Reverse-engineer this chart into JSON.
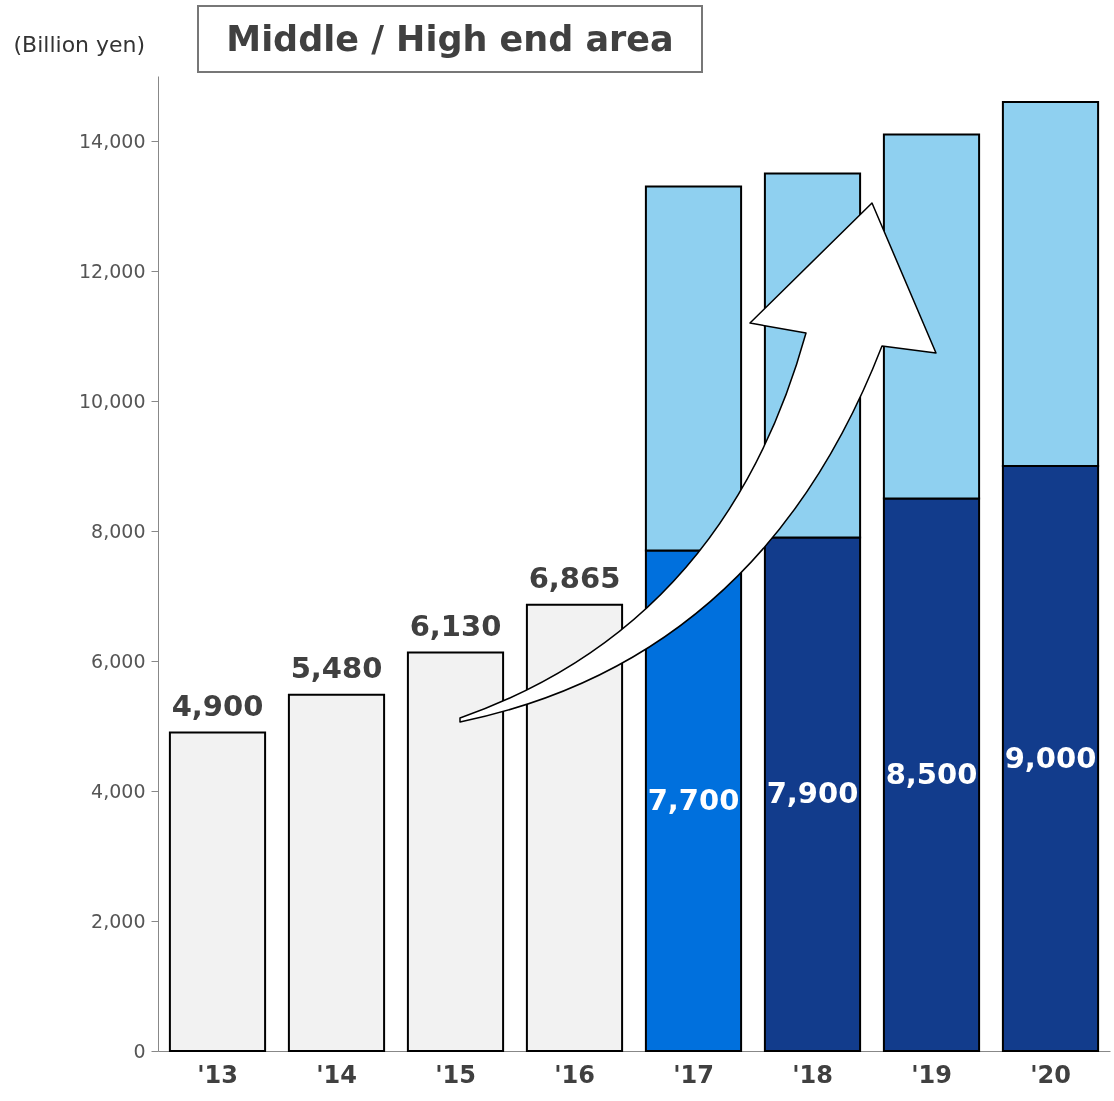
{
  "chart_data": {
    "type": "bar",
    "title": "Middle / High end area",
    "ylabel": "(Billion yen)",
    "categories": [
      "'13",
      "'14",
      "'15",
      "'16",
      "'17",
      "'18",
      "'19",
      "'20"
    ],
    "stacked": true,
    "series": [
      {
        "colors": [
          "#f2f2f2",
          "#f2f2f2",
          "#f2f2f2",
          "#f2f2f2",
          "#0070dd",
          "#123c8c",
          "#123c8c",
          "#123c8c"
        ],
        "values": [
          4900,
          5480,
          6130,
          6865,
          7700,
          7900,
          8500,
          9000
        ],
        "value_labels": [
          "4,900",
          "5,480",
          "6,130",
          "6,865",
          "7,700",
          "7,900",
          "8,500",
          "9,000"
        ]
      },
      {
        "color": "#8fd0f0",
        "values": [
          null,
          null,
          null,
          null,
          5600,
          5600,
          5600,
          5600
        ]
      }
    ],
    "ylim": [
      0,
      15000
    ],
    "yticks": [
      0,
      {
        "value": 2000,
        "label": "2,000"
      },
      {
        "value": 4000,
        "label": "4,000"
      },
      {
        "value": 6000,
        "label": "6,000"
      },
      {
        "value": 8000,
        "label": "8,000"
      },
      {
        "value": 10000,
        "label": "10,000"
      },
      {
        "value": 12000,
        "label": "12,000"
      },
      {
        "value": 14000,
        "label": "14,000"
      }
    ],
    "grid": false
  }
}
